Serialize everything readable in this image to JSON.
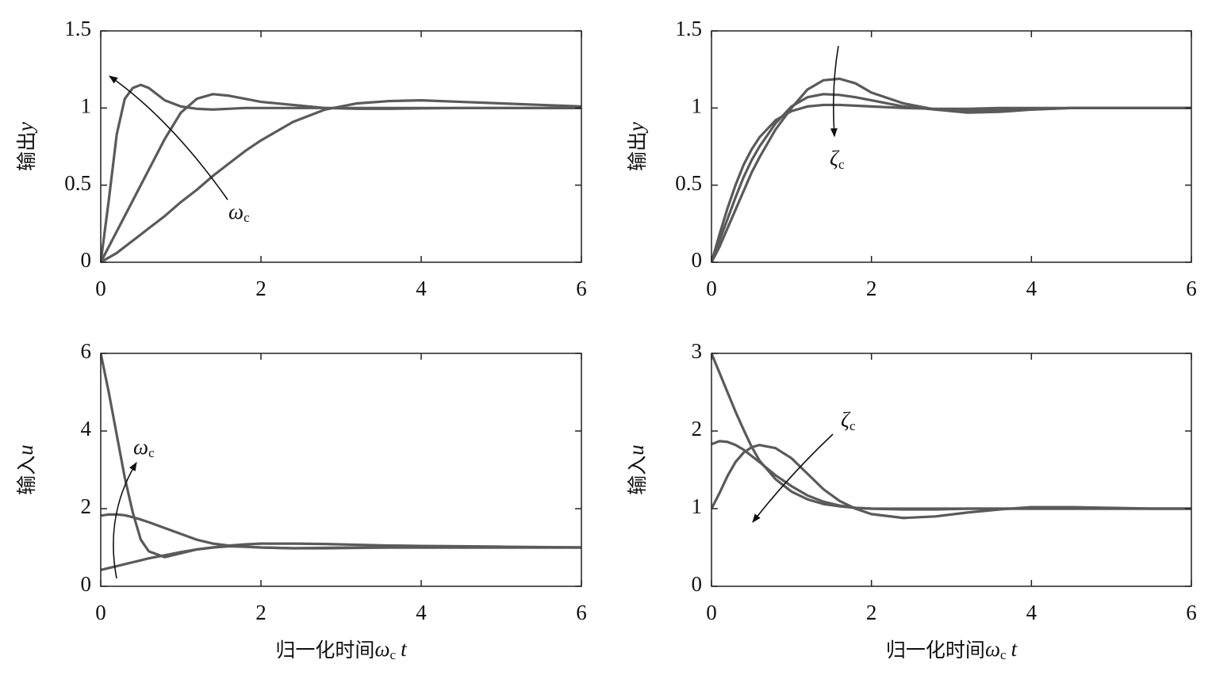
{
  "chart_data": [
    {
      "type": "line",
      "ylabel": {
        "text": "输出",
        "var": "y"
      },
      "x": [
        0,
        0.1,
        0.2,
        0.3,
        0.4,
        0.5,
        0.6,
        0.8,
        1,
        1.2,
        1.4,
        1.6,
        1.8,
        2,
        2.4,
        2.8,
        3.2,
        3.6,
        4,
        4.5,
        5,
        5.5,
        6
      ],
      "xlim": [
        0,
        6
      ],
      "xticks": [
        0,
        2,
        4,
        6
      ],
      "ylim": [
        0,
        1.5
      ],
      "yticks": [
        0,
        0.5,
        1,
        1.5
      ],
      "series": [
        {
          "color": "#5a5a5a",
          "values": [
            0,
            0.4,
            0.83,
            1.06,
            1.13,
            1.15,
            1.13,
            1.05,
            1.01,
            0.995,
            0.99,
            0.995,
            1,
            1,
            1,
            1,
            1,
            1,
            1,
            1,
            1,
            1,
            1
          ]
        },
        {
          "color": "#5a5a5a",
          "values": [
            0,
            0.1,
            0.2,
            0.3,
            0.4,
            0.5,
            0.6,
            0.8,
            0.97,
            1.06,
            1.09,
            1.08,
            1.06,
            1.04,
            1.02,
            1.0,
            0.995,
            0.995,
            0.998,
            1,
            1,
            1,
            1
          ]
        },
        {
          "color": "#5a5a5a",
          "values": [
            0,
            0.03,
            0.06,
            0.1,
            0.14,
            0.18,
            0.22,
            0.3,
            0.39,
            0.47,
            0.56,
            0.64,
            0.72,
            0.79,
            0.91,
            0.99,
            1.03,
            1.045,
            1.05,
            1.04,
            1.03,
            1.02,
            1.01
          ]
        }
      ],
      "annotation": {
        "text": "ω",
        "sub": "c"
      }
    },
    {
      "type": "line",
      "ylabel": {
        "text": "输出",
        "var": "y"
      },
      "x": [
        0,
        0.1,
        0.2,
        0.3,
        0.4,
        0.5,
        0.6,
        0.8,
        1,
        1.2,
        1.4,
        1.6,
        1.8,
        2,
        2.4,
        2.8,
        3.2,
        3.6,
        4,
        4.5,
        5,
        5.5,
        6
      ],
      "xlim": [
        0,
        6
      ],
      "xticks": [
        0,
        2,
        4,
        6
      ],
      "ylim": [
        0,
        1.5
      ],
      "yticks": [
        0,
        0.5,
        1,
        1.5
      ],
      "series": [
        {
          "color": "#5a5a5a",
          "values": [
            0,
            0.1,
            0.22,
            0.34,
            0.46,
            0.58,
            0.68,
            0.86,
            1.0,
            1.12,
            1.18,
            1.19,
            1.16,
            1.1,
            1.03,
            0.99,
            0.98,
            0.985,
            0.99,
            1,
            1,
            1,
            1
          ]
        },
        {
          "color": "#5a5a5a",
          "values": [
            0,
            0.14,
            0.28,
            0.42,
            0.55,
            0.66,
            0.75,
            0.9,
            1.01,
            1.07,
            1.09,
            1.085,
            1.07,
            1.05,
            1.01,
            0.99,
            0.97,
            0.975,
            0.99,
            1,
            1,
            1,
            1
          ]
        },
        {
          "color": "#5a5a5a",
          "values": [
            0,
            0.18,
            0.35,
            0.5,
            0.63,
            0.73,
            0.81,
            0.92,
            0.98,
            1.01,
            1.02,
            1.02,
            1.015,
            1.01,
            1.0,
            0.995,
            0.995,
            1,
            1,
            1,
            1,
            1,
            1
          ]
        }
      ],
      "annotation": {
        "text": "ζ",
        "sub": "c"
      }
    },
    {
      "type": "line",
      "ylabel": {
        "text": "输入",
        "var": "u"
      },
      "xlabel": {
        "text": "归一化时间",
        "var": "ω",
        "sub": "c",
        "var2": "t"
      },
      "x": [
        0,
        0.1,
        0.2,
        0.3,
        0.4,
        0.5,
        0.6,
        0.8,
        1,
        1.2,
        1.4,
        1.6,
        1.8,
        2,
        2.4,
        2.8,
        3.2,
        3.6,
        4,
        4.5,
        5,
        5.5,
        6
      ],
      "xlim": [
        0,
        6
      ],
      "xticks": [
        0,
        2,
        4,
        6
      ],
      "ylim": [
        0,
        6
      ],
      "yticks": [
        0,
        2,
        4,
        6
      ],
      "series": [
        {
          "color": "#5a5a5a",
          "values": [
            6,
            5,
            3.9,
            2.8,
            1.9,
            1.2,
            0.9,
            0.75,
            0.85,
            0.95,
            1.0,
            1.03,
            1.02,
            1.0,
            0.98,
            0.98,
            0.99,
            1,
            1,
            1,
            1,
            1,
            1
          ]
        },
        {
          "color": "#5a5a5a",
          "values": [
            1.82,
            1.85,
            1.85,
            1.83,
            1.78,
            1.72,
            1.65,
            1.5,
            1.35,
            1.2,
            1.1,
            1.05,
            1.02,
            1.0,
            0.98,
            0.99,
            1,
            1,
            1,
            1,
            1,
            1,
            1
          ]
        },
        {
          "color": "#5a5a5a",
          "values": [
            0.42,
            0.47,
            0.52,
            0.57,
            0.62,
            0.67,
            0.72,
            0.8,
            0.88,
            0.95,
            1.0,
            1.05,
            1.08,
            1.1,
            1.1,
            1.09,
            1.07,
            1.05,
            1.04,
            1.03,
            1.02,
            1.01,
            1.0
          ]
        }
      ],
      "annotation": {
        "text": "ω",
        "sub": "c"
      }
    },
    {
      "type": "line",
      "ylabel": {
        "text": "输入",
        "var": "u"
      },
      "xlabel": {
        "text": "归一化时间",
        "var": "ω",
        "sub": "c",
        "var2": "t"
      },
      "x": [
        0,
        0.1,
        0.2,
        0.3,
        0.4,
        0.5,
        0.6,
        0.8,
        1,
        1.2,
        1.4,
        1.6,
        1.8,
        2,
        2.4,
        2.8,
        3.2,
        3.6,
        4,
        4.5,
        5,
        5.5,
        6
      ],
      "xlim": [
        0,
        6
      ],
      "xticks": [
        0,
        2,
        4,
        6
      ],
      "ylim": [
        0,
        3
      ],
      "yticks": [
        0,
        1,
        2,
        3
      ],
      "series": [
        {
          "color": "#5a5a5a",
          "values": [
            3,
            2.75,
            2.5,
            2.25,
            2.02,
            1.8,
            1.62,
            1.38,
            1.22,
            1.12,
            1.06,
            1.03,
            1.01,
            1.0,
            1,
            1,
            1,
            1,
            1,
            1,
            1,
            1,
            1
          ]
        },
        {
          "color": "#5a5a5a",
          "values": [
            1.83,
            1.87,
            1.86,
            1.82,
            1.76,
            1.68,
            1.6,
            1.43,
            1.29,
            1.17,
            1.09,
            1.04,
            1.01,
            1.0,
            0.99,
            0.99,
            1,
            1,
            1,
            1,
            1,
            1,
            1
          ]
        },
        {
          "color": "#5a5a5a",
          "values": [
            1,
            1.2,
            1.42,
            1.6,
            1.72,
            1.79,
            1.82,
            1.78,
            1.65,
            1.45,
            1.25,
            1.1,
            1.0,
            0.93,
            0.88,
            0.9,
            0.95,
            0.99,
            1.02,
            1.02,
            1.01,
            1.0,
            1.0
          ]
        }
      ],
      "annotation": {
        "text": "ζ",
        "sub": "c"
      }
    }
  ]
}
